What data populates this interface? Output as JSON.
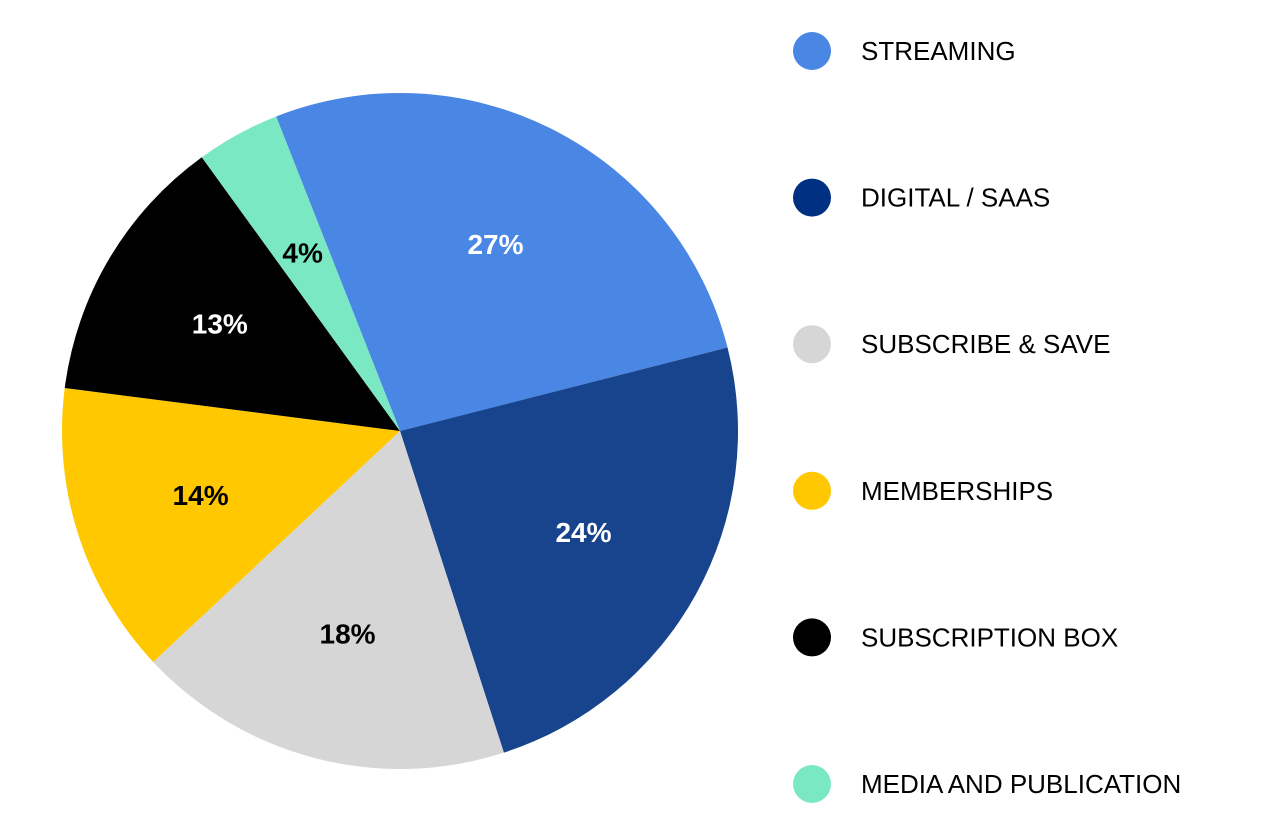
{
  "chart_data": {
    "type": "pie",
    "title": "",
    "legend_position": "right",
    "slices": [
      {
        "label": "STREAMING",
        "value": 27,
        "display": "27%",
        "color": "#4A86E4",
        "label_color": "#ffffff"
      },
      {
        "label": "DIGITAL / SAAS",
        "value": 24,
        "display": "24%",
        "color": "#17448C",
        "label_color": "#ffffff"
      },
      {
        "label": "SUBSCRIBE & SAVE",
        "value": 18,
        "display": "18%",
        "color": "#D6D6D6",
        "label_color": "#000000"
      },
      {
        "label": "MEMBERSHIPS",
        "value": 14,
        "display": "14%",
        "color": "#FFC800",
        "label_color": "#000000"
      },
      {
        "label": "SUBSCRIPTION BOX",
        "value": 13,
        "display": "13%",
        "color": "#000000",
        "label_color": "#ffffff"
      },
      {
        "label": "MEDIA AND PUBLICATION",
        "value": 4,
        "display": "4%",
        "color": "#7BE8C4",
        "label_color": "#000000"
      }
    ],
    "legend_colors": [
      "#4A86E4",
      "#003082",
      "#D6D6D6",
      "#FFC800",
      "#000000",
      "#7BE8C4"
    ]
  }
}
